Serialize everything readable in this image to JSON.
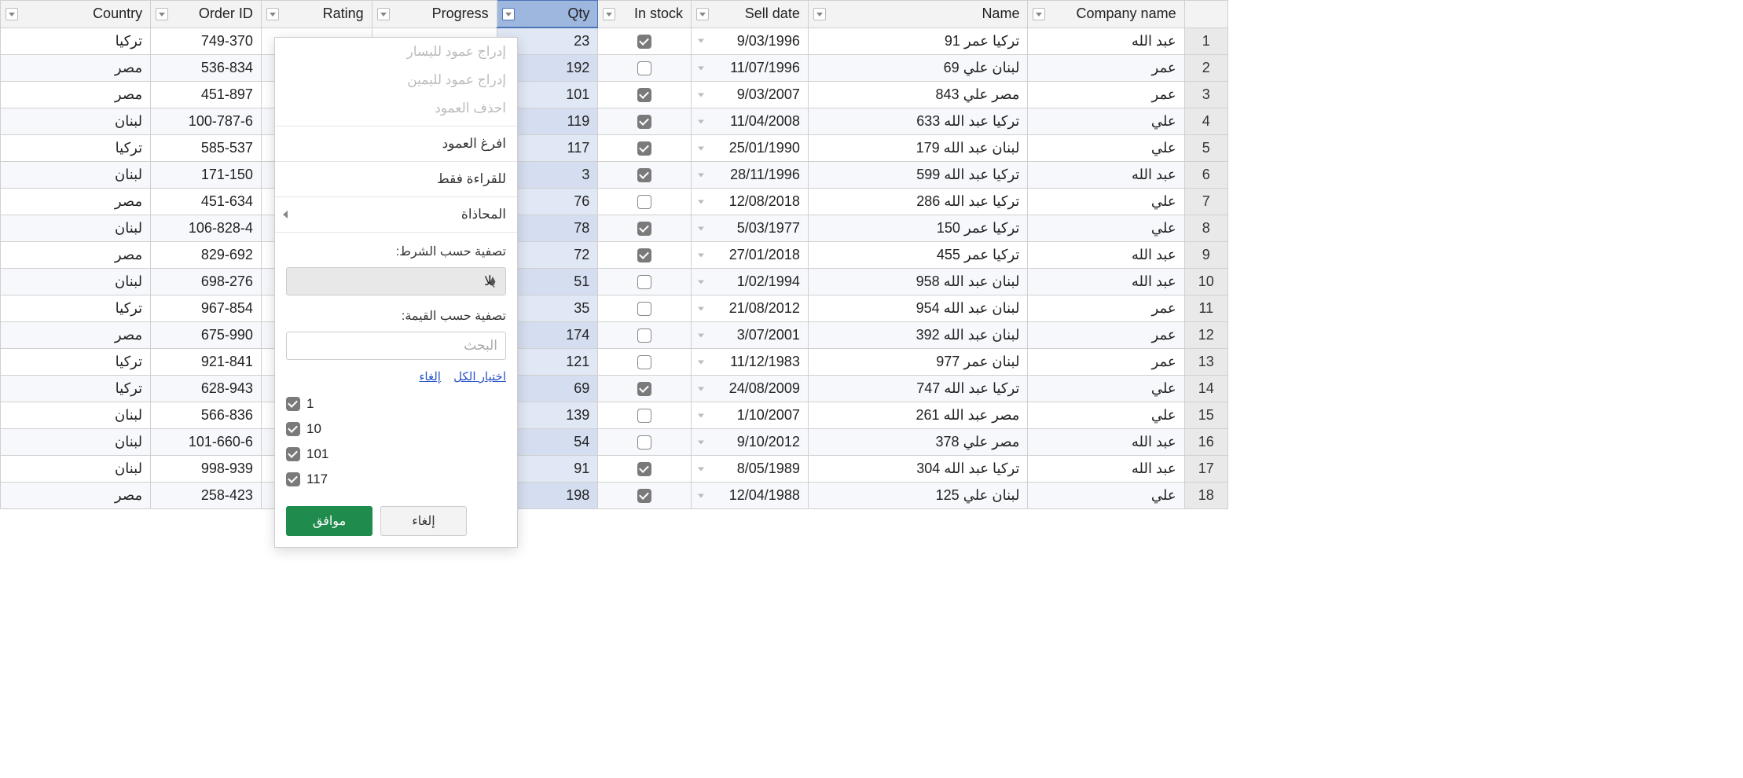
{
  "headers": {
    "country": "Country",
    "order_id": "Order ID",
    "rating": "Rating",
    "progress": "Progress",
    "qty": "Qty",
    "in_stock": "In stock",
    "sell_date": "Sell date",
    "name": "Name",
    "company_name": "Company name"
  },
  "rows": [
    {
      "n": 1,
      "country": "تركيا",
      "order": "749-370",
      "qty": 23,
      "stock": true,
      "sell": "9/03/1996",
      "name": "تركيا عمر 91",
      "company": "عبد الله"
    },
    {
      "n": 2,
      "country": "مصر",
      "order": "536-834",
      "qty": 192,
      "stock": false,
      "sell": "11/07/1996",
      "name": "لبنان علي 69",
      "company": "عمر"
    },
    {
      "n": 3,
      "country": "مصر",
      "order": "451-897",
      "qty": 101,
      "stock": true,
      "sell": "9/03/2007",
      "name": "مصر علي 843",
      "company": "عمر"
    },
    {
      "n": 4,
      "country": "لبنان",
      "order": "100-787-6",
      "qty": 119,
      "stock": true,
      "sell": "11/04/2008",
      "name": "تركيا عبد الله 633",
      "company": "علي"
    },
    {
      "n": 5,
      "country": "تركيا",
      "order": "585-537",
      "qty": 117,
      "stock": true,
      "sell": "25/01/1990",
      "name": "لبنان عبد الله 179",
      "company": "علي"
    },
    {
      "n": 6,
      "country": "لبنان",
      "order": "171-150",
      "qty": 3,
      "stock": true,
      "sell": "28/11/1996",
      "name": "تركيا عبد الله 599",
      "company": "عبد الله"
    },
    {
      "n": 7,
      "country": "مصر",
      "order": "451-634",
      "qty": 76,
      "stock": false,
      "sell": "12/08/2018",
      "name": "تركيا عبد الله 286",
      "company": "علي"
    },
    {
      "n": 8,
      "country": "لبنان",
      "order": "106-828-4",
      "qty": 78,
      "stock": true,
      "sell": "5/03/1977",
      "name": "تركيا عمر 150",
      "company": "علي"
    },
    {
      "n": 9,
      "country": "مصر",
      "order": "829-692",
      "qty": 72,
      "stock": true,
      "sell": "27/01/2018",
      "name": "تركيا عمر 455",
      "company": "عبد الله"
    },
    {
      "n": 10,
      "country": "لبنان",
      "order": "698-276",
      "qty": 51,
      "stock": false,
      "sell": "1/02/1994",
      "name": "لبنان عبد الله 958",
      "company": "عبد الله"
    },
    {
      "n": 11,
      "country": "تركيا",
      "order": "967-854",
      "qty": 35,
      "stock": false,
      "sell": "21/08/2012",
      "name": "لبنان عبد الله 954",
      "company": "عمر"
    },
    {
      "n": 12,
      "country": "مصر",
      "order": "675-990",
      "qty": 174,
      "stock": false,
      "sell": "3/07/2001",
      "name": "لبنان عبد الله 392",
      "company": "عمر"
    },
    {
      "n": 13,
      "country": "تركيا",
      "order": "921-841",
      "qty": 121,
      "stock": false,
      "sell": "11/12/1983",
      "name": "لبنان عمر 977",
      "company": "عمر"
    },
    {
      "n": 14,
      "country": "تركيا",
      "order": "628-943",
      "qty": 69,
      "stock": true,
      "sell": "24/08/2009",
      "name": "تركيا عبد الله 747",
      "company": "علي"
    },
    {
      "n": 15,
      "country": "لبنان",
      "order": "566-836",
      "qty": 139,
      "stock": false,
      "sell": "1/10/2007",
      "name": "مصر عبد الله 261",
      "company": "علي"
    },
    {
      "n": 16,
      "country": "لبنان",
      "order": "101-660-6",
      "qty": 54,
      "stock": false,
      "sell": "9/10/2012",
      "name": "مصر علي 378",
      "company": "عبد الله"
    },
    {
      "n": 17,
      "country": "لبنان",
      "order": "998-939",
      "qty": 91,
      "stock": true,
      "sell": "8/05/1989",
      "name": "تركيا عبد الله 304",
      "company": "عبد الله"
    },
    {
      "n": 18,
      "country": "مصر",
      "order": "258-423",
      "qty": 198,
      "stock": true,
      "sell": "12/04/1988",
      "name": "لبنان علي 125",
      "company": "علي"
    }
  ],
  "menu": {
    "insert_left": "إدراج عمود لليسار",
    "insert_right": "إدراج عمود لليمين",
    "remove_col": "احذف العمود",
    "clear_col": "افرغ العمود",
    "read_only": "للقراءة فقط",
    "alignment": "المحاذاة",
    "filter_condition": "تصفية حسب الشرط:",
    "none": "بلا",
    "filter_value": "تصفية حسب القيمة:",
    "search_placeholder": "البحث",
    "select_all": "اختيار الكل",
    "clear": "إلغاء",
    "values": [
      "1",
      "10",
      "101",
      "117"
    ],
    "ok": "موافق",
    "cancel": "إلغاء"
  }
}
